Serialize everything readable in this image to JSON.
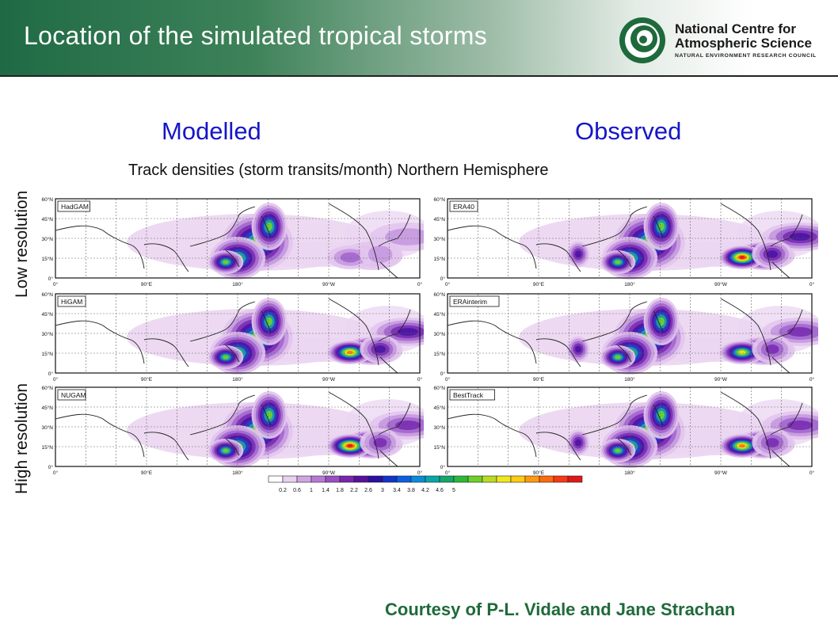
{
  "header": {
    "title": "Location of the simulated tropical storms",
    "logo": {
      "line1": "National Centre for",
      "line2": "Atmospheric Science",
      "line3": "NATURAL ENVIRONMENT RESEARCH COUNCIL"
    }
  },
  "columns": {
    "modelled": "Modelled",
    "observed": "Observed"
  },
  "subtitle": "Track densities (storm transits/month) Northern Hemisphere",
  "row_labels": {
    "low": "Low resolution",
    "high": "High resolution"
  },
  "maps": {
    "lat_labels": [
      "60°N",
      "45°N",
      "30°N",
      "15°N",
      "0°"
    ],
    "lon_labels": [
      "0°",
      "90°E",
      "180°",
      "90°W",
      "0°"
    ],
    "panels": [
      {
        "name": "HadGAM",
        "side": "modelled",
        "row": 0,
        "atlantic": 0.35,
        "epac": 0.3
      },
      {
        "name": "HiGAM",
        "side": "modelled",
        "row": 1,
        "atlantic": 0.9,
        "epac": 0.95
      },
      {
        "name": "NUGAM",
        "side": "modelled",
        "row": 2,
        "atlantic": 0.7,
        "epac": 1.0
      },
      {
        "name": "ERA40",
        "side": "observed",
        "row": 0,
        "atlantic": 0.9,
        "epac": 1.0
      },
      {
        "name": "ERAinterim",
        "side": "observed",
        "row": 1,
        "atlantic": 0.8,
        "epac": 0.85
      },
      {
        "name": "BestTrack",
        "side": "observed",
        "row": 2,
        "atlantic": 0.65,
        "epac": 0.9
      }
    ]
  },
  "colorbar": {
    "labels": [
      "0.2",
      "0.6",
      "1",
      "1.4",
      "1.8",
      "2.2",
      "2.6",
      "3",
      "3.4",
      "3.8",
      "4.2",
      "4.6",
      "5"
    ],
    "colors": [
      "#ffffff",
      "#e8d2ef",
      "#cfa5e2",
      "#b77ad4",
      "#9b4fc2",
      "#7a25ad",
      "#58119b",
      "#2a0fa0",
      "#1234c8",
      "#0d5fe0",
      "#0b8bd8",
      "#0aa6a8",
      "#14a66a",
      "#2db83a",
      "#6fcf2a",
      "#b8dc24",
      "#f0e81e",
      "#ffcc14",
      "#ff9a10",
      "#ff6a10",
      "#f53a14",
      "#e01818"
    ]
  },
  "courtesy": "Courtesy of P-L. Vidale and Jane Strachan"
}
